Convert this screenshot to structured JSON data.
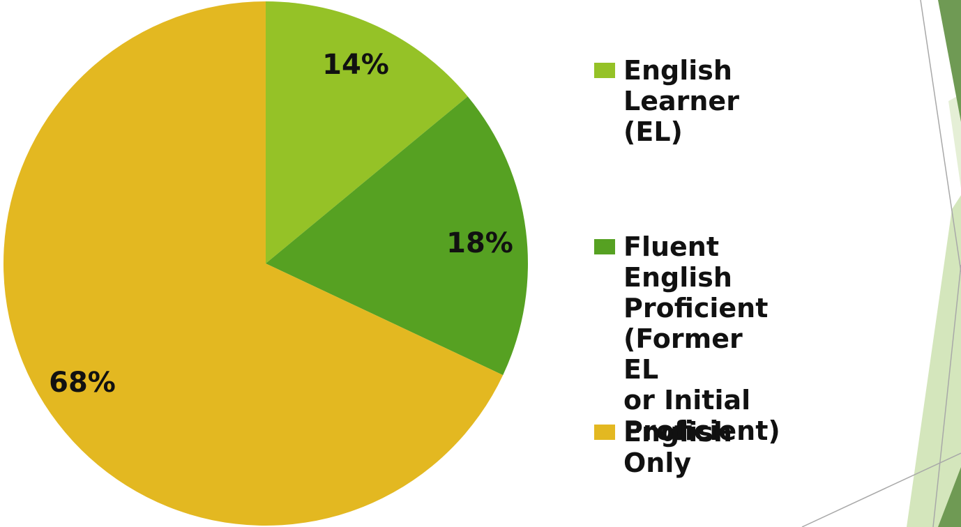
{
  "chart_data": {
    "type": "pie",
    "title": "",
    "slices": [
      {
        "label": "English  Learner (EL)",
        "value": 14,
        "value_label": "14%",
        "color": "#95c227"
      },
      {
        "label": "Fluent English\nProficient (Former EL\nor Initial Proficient)",
        "value": 18,
        "value_label": "18%",
        "color": "#56a122"
      },
      {
        "label": "English Only",
        "value": 68,
        "value_label": "68%",
        "color": "#e3b821"
      }
    ],
    "start_angle": "12 o'clock",
    "direction": "clockwise",
    "legend_position": "right"
  },
  "theme": {
    "accent_dark": "#6f9a54",
    "accent_light": "#d4e6bc",
    "background": "#ffffff"
  }
}
